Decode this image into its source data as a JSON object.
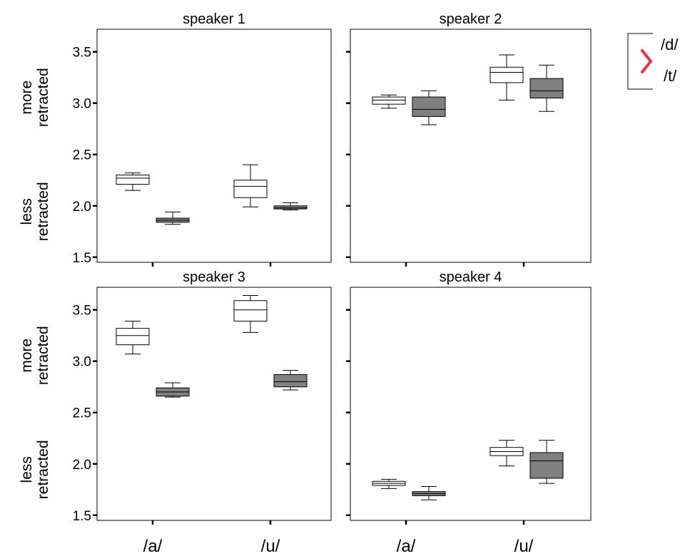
{
  "chart_data": {
    "type": "boxplot",
    "categories": [
      "/a/",
      "/u/"
    ],
    "groups": [
      "/d/",
      "/t/"
    ],
    "ylim": [
      1.45,
      3.72
    ],
    "yticks": [
      "1.5",
      "2.0",
      "2.5",
      "3.0",
      "3.5"
    ],
    "ylabel_upper": [
      "more",
      "retracted"
    ],
    "ylabel_lower": [
      "less",
      "retracted"
    ],
    "legend": {
      "placement": "top-right",
      "entries": [
        "/d/",
        "/t/"
      ],
      "symbol": ">",
      "symbol_color": "#e8304a"
    },
    "colors": {
      "/d/": "#ffffff",
      "/t/": "#808080"
    },
    "panels": [
      {
        "title": "speaker 1",
        "boxes": [
          {
            "category": "/a/",
            "group": "/d/",
            "min": 2.15,
            "q1": 2.21,
            "median": 2.27,
            "q3": 2.3,
            "max": 2.32
          },
          {
            "category": "/a/",
            "group": "/t/",
            "min": 1.82,
            "q1": 1.84,
            "median": 1.86,
            "q3": 1.88,
            "max": 1.94
          },
          {
            "category": "/u/",
            "group": "/d/",
            "min": 1.99,
            "q1": 2.08,
            "median": 2.19,
            "q3": 2.25,
            "max": 2.4
          },
          {
            "category": "/u/",
            "group": "/t/",
            "min": 1.96,
            "q1": 1.97,
            "median": 1.98,
            "q3": 2.0,
            "max": 2.03
          }
        ]
      },
      {
        "title": "speaker 2",
        "boxes": [
          {
            "category": "/a/",
            "group": "/d/",
            "min": 2.95,
            "q1": 2.99,
            "median": 3.03,
            "q3": 3.06,
            "max": 3.08
          },
          {
            "category": "/a/",
            "group": "/t/",
            "min": 2.79,
            "q1": 2.87,
            "median": 2.94,
            "q3": 3.06,
            "max": 3.12
          },
          {
            "category": "/u/",
            "group": "/d/",
            "min": 3.03,
            "q1": 3.2,
            "median": 3.3,
            "q3": 3.35,
            "max": 3.47
          },
          {
            "category": "/u/",
            "group": "/t/",
            "min": 2.92,
            "q1": 3.05,
            "median": 3.12,
            "q3": 3.24,
            "max": 3.37
          }
        ]
      },
      {
        "title": "speaker 3",
        "boxes": [
          {
            "category": "/a/",
            "group": "/d/",
            "min": 3.07,
            "q1": 3.16,
            "median": 3.25,
            "q3": 3.32,
            "max": 3.39
          },
          {
            "category": "/a/",
            "group": "/t/",
            "min": 2.65,
            "q1": 2.66,
            "median": 2.7,
            "q3": 2.74,
            "max": 2.79
          },
          {
            "category": "/u/",
            "group": "/d/",
            "min": 3.28,
            "q1": 3.39,
            "median": 3.5,
            "q3": 3.59,
            "max": 3.64
          },
          {
            "category": "/u/",
            "group": "/t/",
            "min": 2.72,
            "q1": 2.75,
            "median": 2.8,
            "q3": 2.87,
            "max": 2.91
          }
        ]
      },
      {
        "title": "speaker 4",
        "boxes": [
          {
            "category": "/a/",
            "group": "/d/",
            "min": 1.76,
            "q1": 1.79,
            "median": 1.81,
            "q3": 1.83,
            "max": 1.85
          },
          {
            "category": "/a/",
            "group": "/t/",
            "min": 1.65,
            "q1": 1.69,
            "median": 1.71,
            "q3": 1.73,
            "max": 1.78
          },
          {
            "category": "/u/",
            "group": "/d/",
            "min": 1.98,
            "q1": 2.08,
            "median": 2.12,
            "q3": 2.16,
            "max": 2.23
          },
          {
            "category": "/u/",
            "group": "/t/",
            "min": 1.81,
            "q1": 1.86,
            "median": 2.03,
            "q3": 2.11,
            "max": 2.23
          }
        ]
      }
    ]
  }
}
